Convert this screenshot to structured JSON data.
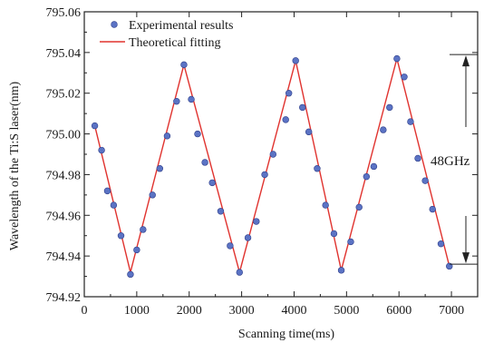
{
  "chart_data": {
    "type": "scatter",
    "title": "",
    "xlabel": "Scanning time(ms)",
    "ylabel": "Wavelength of the Ti:S laser(nm)",
    "xlim": [
      0,
      7500
    ],
    "ylim": [
      794.92,
      795.06
    ],
    "x_ticks": [
      "0",
      "1000",
      "2000",
      "3000",
      "4000",
      "5000",
      "6000",
      "7000"
    ],
    "y_ticks": [
      "794.92",
      "794.94",
      "794.96",
      "794.98",
      "795.00",
      "795.02",
      "795.04",
      "795.06"
    ],
    "grid": false,
    "legend_position": "top-left",
    "series": [
      {
        "name": "Experimental results",
        "kind": "scatter",
        "marker": "circle",
        "color": "#5b73c4",
        "points": [
          [
            200,
            795.004
          ],
          [
            330,
            794.992
          ],
          [
            440,
            794.972
          ],
          [
            560,
            794.965
          ],
          [
            700,
            794.95
          ],
          [
            880,
            794.931
          ],
          [
            1000,
            794.943
          ],
          [
            1120,
            794.953
          ],
          [
            1300,
            794.97
          ],
          [
            1440,
            794.983
          ],
          [
            1580,
            794.999
          ],
          [
            1760,
            795.016
          ],
          [
            1900,
            795.034
          ],
          [
            2040,
            795.017
          ],
          [
            2160,
            795.0
          ],
          [
            2300,
            794.986
          ],
          [
            2440,
            794.976
          ],
          [
            2600,
            794.962
          ],
          [
            2780,
            794.945
          ],
          [
            2960,
            794.932
          ],
          [
            3120,
            794.949
          ],
          [
            3280,
            794.957
          ],
          [
            3440,
            794.98
          ],
          [
            3600,
            794.99
          ],
          [
            3840,
            795.007
          ],
          [
            3900,
            795.02
          ],
          [
            4030,
            795.036
          ],
          [
            4160,
            795.013
          ],
          [
            4280,
            795.001
          ],
          [
            4440,
            794.983
          ],
          [
            4600,
            794.965
          ],
          [
            4760,
            794.951
          ],
          [
            4900,
            794.933
          ],
          [
            5080,
            794.947
          ],
          [
            5240,
            794.964
          ],
          [
            5380,
            794.979
          ],
          [
            5520,
            794.984
          ],
          [
            5700,
            795.002
          ],
          [
            5820,
            795.013
          ],
          [
            5960,
            795.037
          ],
          [
            6100,
            795.028
          ],
          [
            6220,
            795.006
          ],
          [
            6360,
            794.988
          ],
          [
            6500,
            794.977
          ],
          [
            6640,
            794.963
          ],
          [
            6800,
            794.946
          ],
          [
            6960,
            794.935
          ]
        ]
      },
      {
        "name": "Theoretical fitting",
        "kind": "line",
        "color": "#e0332f",
        "points": [
          [
            200,
            795.004
          ],
          [
            880,
            794.932
          ],
          [
            1900,
            795.034
          ],
          [
            2960,
            794.932
          ],
          [
            4030,
            795.036
          ],
          [
            4900,
            794.933
          ],
          [
            5960,
            795.037
          ],
          [
            6960,
            794.935
          ]
        ]
      }
    ],
    "annotations": [
      {
        "text": "48GHz",
        "upper_value": 795.039,
        "lower_value": 794.936
      }
    ]
  }
}
